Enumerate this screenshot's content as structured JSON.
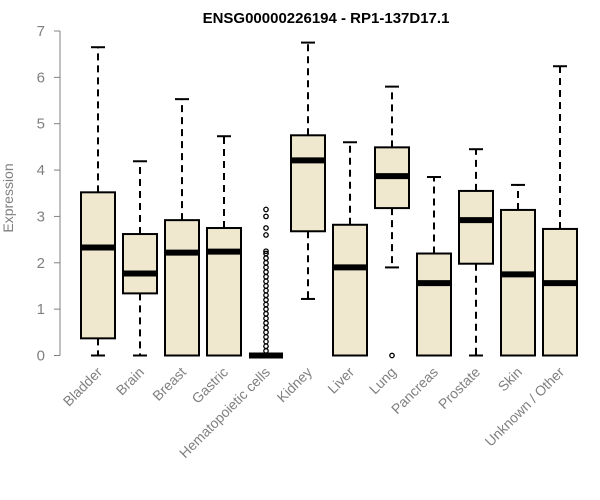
{
  "chart_data": {
    "type": "boxplot",
    "title": "ENSG00000226194 - RP1-137D17.1",
    "ylabel": "Expression",
    "xlabel": "",
    "ylim": [
      0,
      7
    ],
    "yticks": [
      "0",
      "1",
      "2",
      "3",
      "4",
      "5",
      "6",
      "7"
    ],
    "grid": false,
    "legend": "none",
    "box_fill": "#efe8cf",
    "line_color": "#000000",
    "categories": [
      "Bladder",
      "Brain",
      "Breast",
      "Gastric",
      "Hematopoietic cells",
      "Kidney",
      "Liver",
      "Lung",
      "Pancreas",
      "Prostate",
      "Skin",
      "Unknown / Other"
    ],
    "boxes": [
      {
        "min": 0.0,
        "q1": 0.37,
        "median": 2.33,
        "q3": 3.52,
        "max": 6.65,
        "outliers": []
      },
      {
        "min": 0.0,
        "q1": 1.34,
        "median": 1.77,
        "q3": 2.62,
        "max": 4.19,
        "outliers": []
      },
      {
        "min": 0.0,
        "q1": 0.0,
        "median": 2.22,
        "q3": 2.92,
        "max": 5.53,
        "outliers": []
      },
      {
        "min": 0.0,
        "q1": 0.0,
        "median": 2.24,
        "q3": 2.75,
        "max": 4.73,
        "outliers": []
      },
      {
        "min": 0.0,
        "q1": 0.0,
        "median": 0.0,
        "q3": 0.0,
        "max": 0.0,
        "outliers": [
          0.1,
          0.2,
          0.3,
          0.4,
          0.5,
          0.6,
          0.7,
          0.8,
          0.9,
          1.0,
          1.1,
          1.2,
          1.3,
          1.4,
          1.5,
          1.6,
          1.7,
          1.8,
          1.9,
          2.0,
          2.1,
          2.2,
          2.25,
          2.6,
          2.75,
          3.0,
          3.15
        ]
      },
      {
        "min": 1.22,
        "q1": 2.68,
        "median": 4.21,
        "q3": 4.75,
        "max": 6.75,
        "outliers": []
      },
      {
        "min": 0.0,
        "q1": 0.0,
        "median": 1.9,
        "q3": 2.82,
        "max": 4.6,
        "outliers": []
      },
      {
        "min": 1.9,
        "q1": 3.18,
        "median": 3.87,
        "q3": 4.49,
        "max": 5.8,
        "outliers": [
          0.0
        ]
      },
      {
        "min": 0.0,
        "q1": 0.0,
        "median": 1.56,
        "q3": 2.2,
        "max": 3.85,
        "outliers": []
      },
      {
        "min": 0.0,
        "q1": 1.98,
        "median": 2.92,
        "q3": 3.55,
        "max": 4.45,
        "outliers": []
      },
      {
        "min": 0.0,
        "q1": 0.0,
        "median": 1.75,
        "q3": 3.14,
        "max": 3.68,
        "outliers": []
      },
      {
        "min": 0.0,
        "q1": 0.0,
        "median": 1.56,
        "q3": 2.73,
        "max": 6.24,
        "outliers": []
      }
    ]
  }
}
